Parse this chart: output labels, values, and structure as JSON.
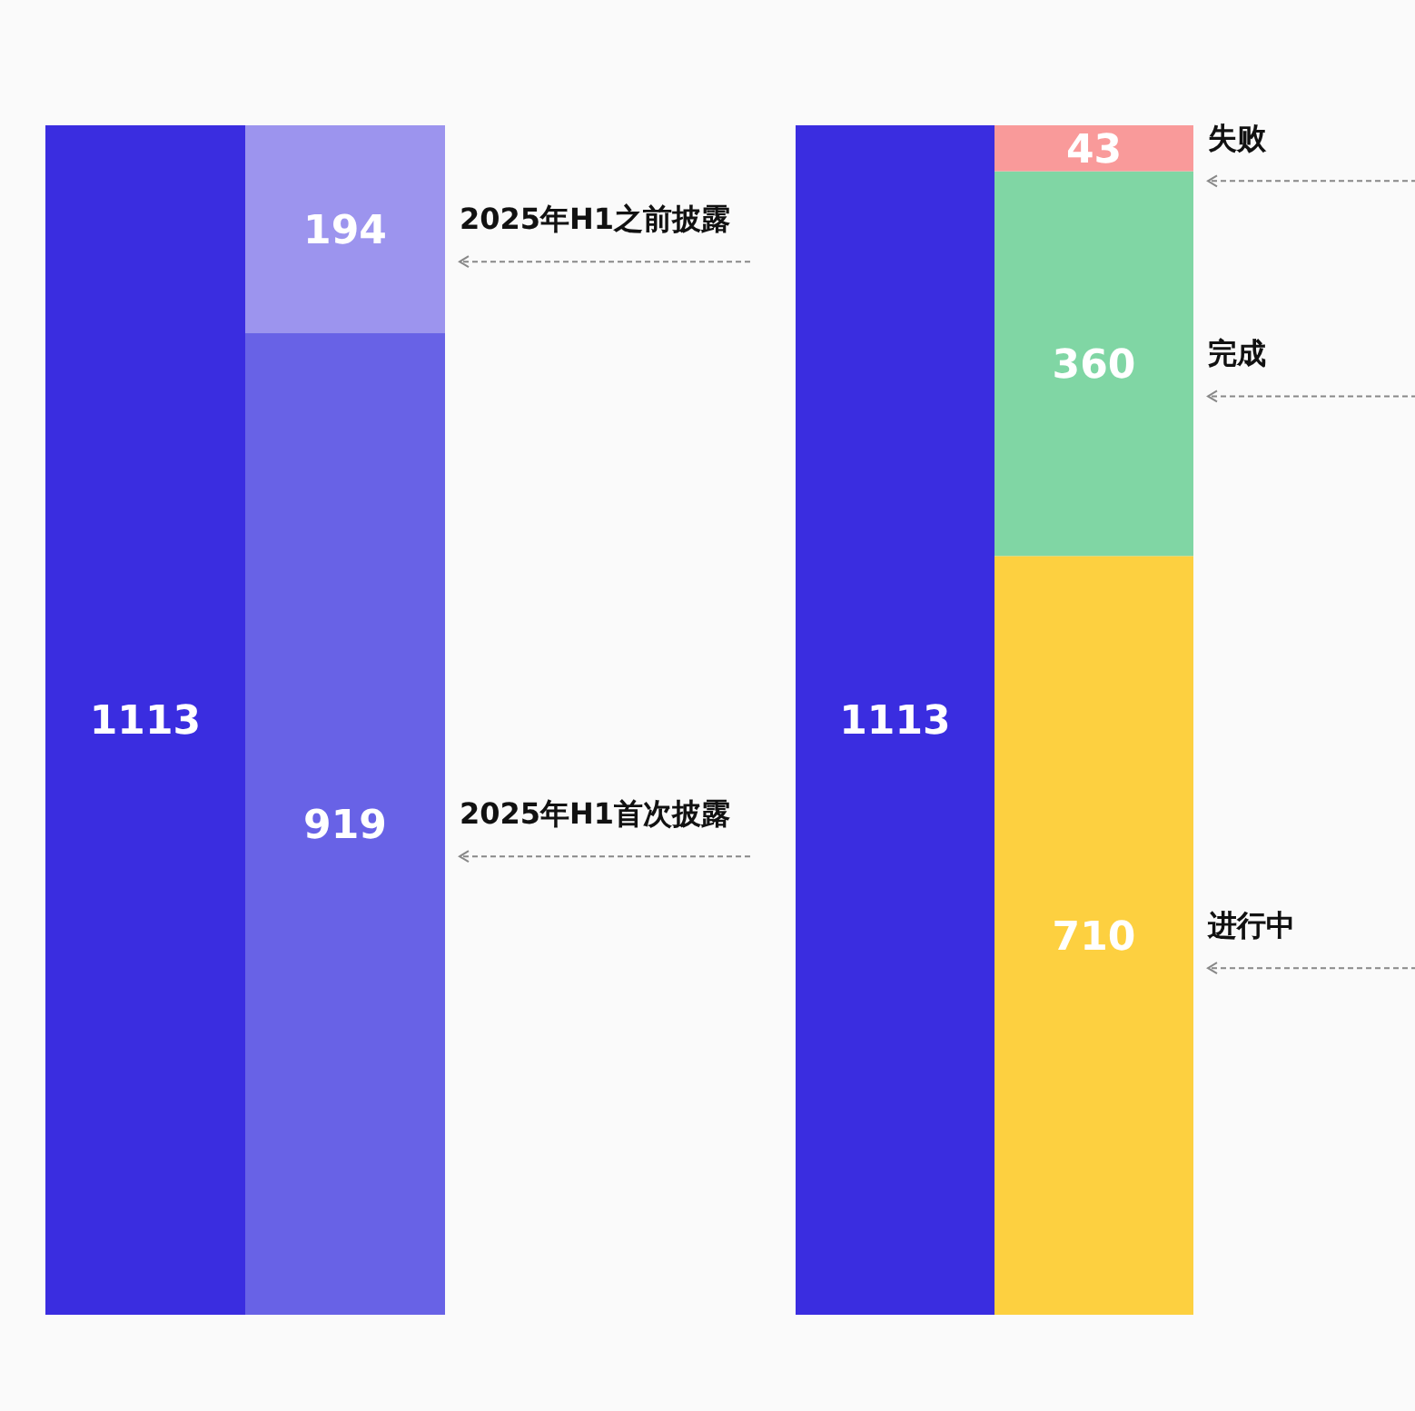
{
  "chart_data": [
    {
      "type": "bar",
      "stacked": true,
      "data_labels": true,
      "categories": [
        null,
        null
      ],
      "series": [
        {
          "color": "#3a2de0",
          "values": [
            1113,
            null
          ]
        },
        {
          "name": "2025年H1首次披露",
          "color": "#6862e6",
          "values": [
            null,
            919
          ]
        },
        {
          "name": "2025年H1之前披露",
          "color": "#9c94ee",
          "values": [
            null,
            194
          ]
        }
      ]
    },
    {
      "type": "bar",
      "stacked": true,
      "data_labels": true,
      "categories": [
        null,
        null
      ],
      "series": [
        {
          "color": "#3a2de0",
          "values": [
            1113,
            null
          ]
        },
        {
          "name": "进行中",
          "color": "#fdd040",
          "values": [
            null,
            710
          ]
        },
        {
          "name": "完成",
          "color": "#80d6a4",
          "values": [
            null,
            360
          ]
        },
        {
          "name": "失败",
          "color": "#f99a9a",
          "values": [
            null,
            43
          ]
        }
      ]
    }
  ]
}
